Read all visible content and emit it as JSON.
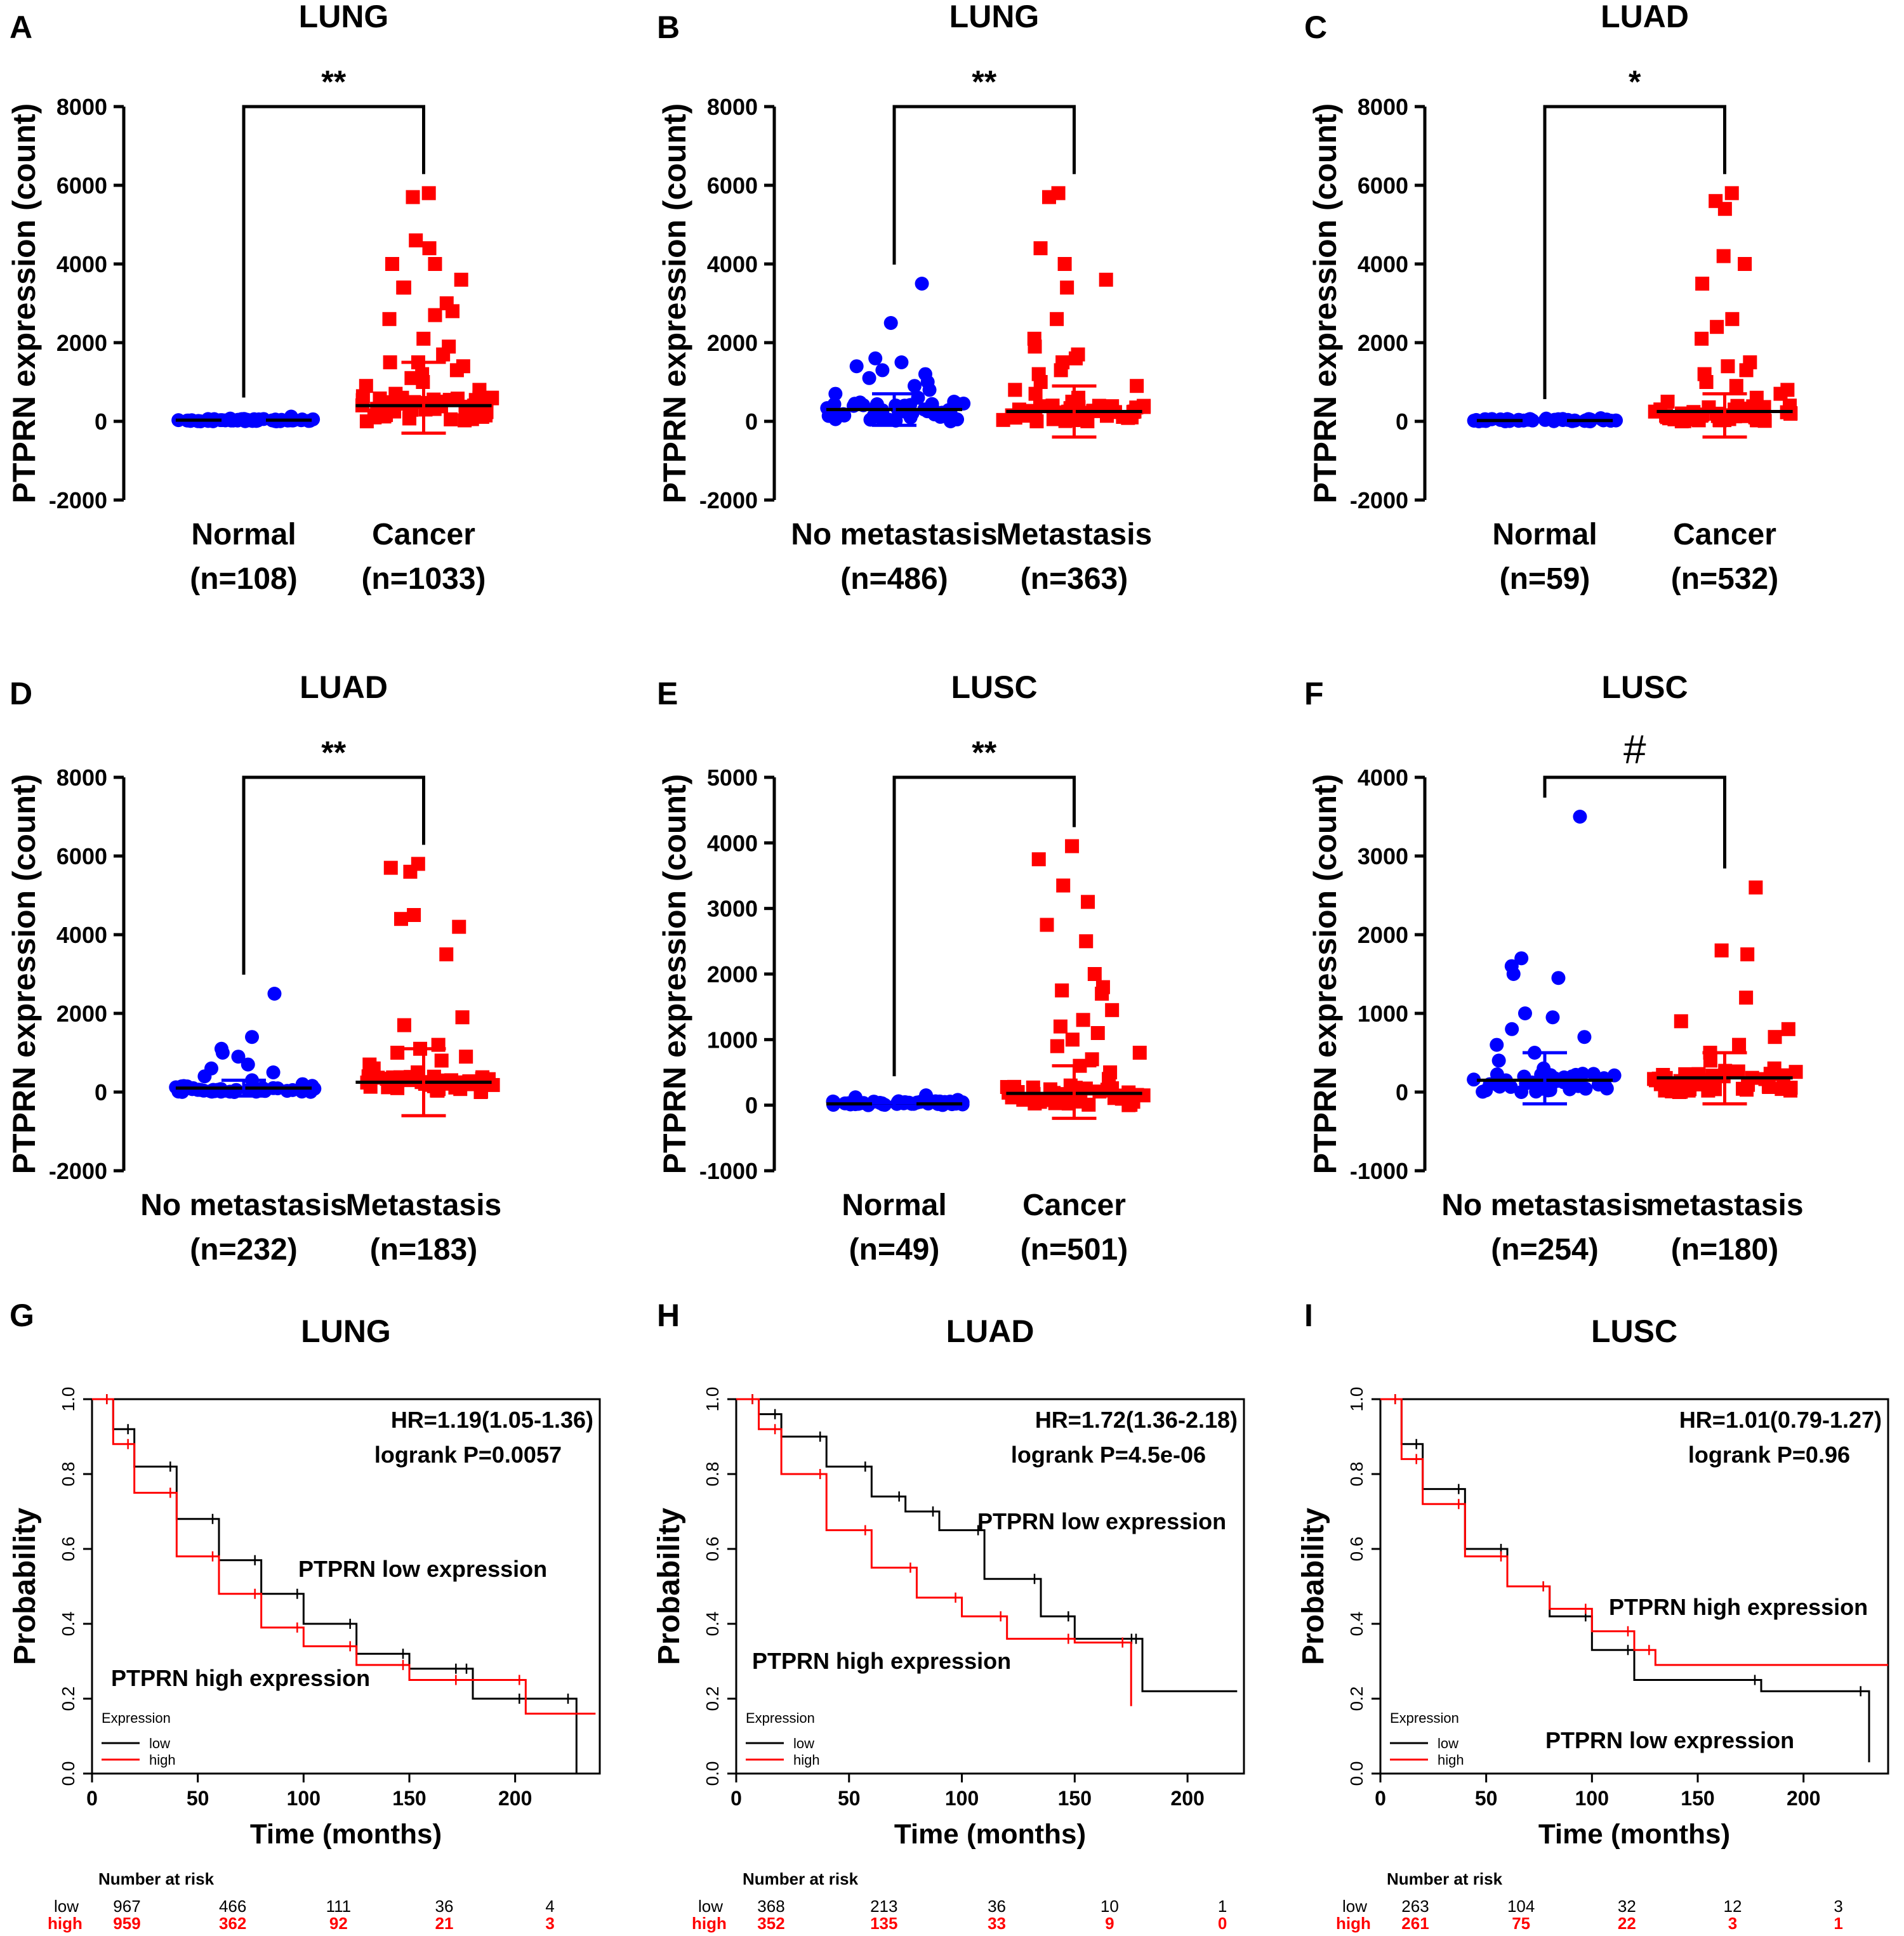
{
  "chart_data": [
    {
      "panel": "A",
      "type": "scatter",
      "title": "LUNG",
      "ylabel": "PTPRN expression (count)",
      "ylim": [
        -2000,
        8000
      ],
      "yticks": [
        "8000",
        "6000",
        "4000",
        "2000",
        "0",
        "-2000"
      ],
      "groups": [
        {
          "label": "Normal",
          "n": "(n=108)",
          "color": "#0000ff",
          "marker": "circle",
          "mean": 30,
          "sd_high": 40,
          "sd_low": -20,
          "points": [
            0,
            0,
            10,
            20,
            30,
            20,
            10,
            60,
            40,
            20,
            30,
            10,
            50,
            70,
            120,
            30,
            20,
            10,
            15,
            25
          ]
        },
        {
          "label": "Cancer",
          "n": "(n=1033)",
          "color": "#ff0000",
          "marker": "square",
          "mean": 400,
          "sd_high": 1500,
          "sd_low": -300,
          "points": [
            5800,
            5700,
            4600,
            4400,
            4000,
            4000,
            3600,
            3400,
            3400,
            3000,
            2800,
            2700,
            2600,
            2100,
            1900,
            1700,
            1500,
            1500,
            1400,
            1300,
            1200,
            1100,
            1000,
            900,
            800,
            700,
            600,
            500,
            400,
            300,
            250,
            200,
            150,
            100,
            50,
            0
          ]
        }
      ],
      "significance": "**"
    },
    {
      "panel": "B",
      "type": "scatter",
      "title": "LUNG",
      "ylabel": "PTPRN expression (count)",
      "ylim": [
        -2000,
        8000
      ],
      "yticks": [
        "8000",
        "6000",
        "4000",
        "2000",
        "0",
        "-2000"
      ],
      "groups": [
        {
          "label": "No metastasis",
          "n": "(n=486)",
          "color": "#0000ff",
          "marker": "circle",
          "mean": 300,
          "sd_high": 700,
          "sd_low": -100,
          "points": [
            3500,
            2500,
            1600,
            1500,
            1400,
            1300,
            1200,
            1100,
            1000,
            900,
            800,
            700,
            600,
            500,
            400,
            300,
            200,
            100,
            50,
            0
          ]
        },
        {
          "label": "Metastasis",
          "n": "(n=363)",
          "color": "#ff0000",
          "marker": "square",
          "mean": 250,
          "sd_high": 900,
          "sd_low": -400,
          "points": [
            5800,
            5700,
            4400,
            4000,
            3600,
            3400,
            2600,
            2100,
            1900,
            1700,
            1600,
            1500,
            1300,
            1200,
            1000,
            900,
            800,
            700,
            600,
            500,
            400,
            300,
            200,
            100,
            50,
            0
          ]
        }
      ],
      "significance": "**"
    },
    {
      "panel": "C",
      "type": "scatter",
      "title": "LUAD",
      "ylabel": "PTPRN expression (count)",
      "ylim": [
        -2000,
        8000
      ],
      "yticks": [
        "8000",
        "6000",
        "4000",
        "2000",
        "0",
        "-2000"
      ],
      "groups": [
        {
          "label": "Normal",
          "n": "(n=59)",
          "color": "#0000ff",
          "marker": "circle",
          "mean": 20,
          "sd_high": 40,
          "sd_low": -10,
          "points": [
            0,
            10,
            20,
            30,
            40,
            50,
            60,
            70,
            80,
            20
          ]
        },
        {
          "label": "Cancer",
          "n": "(n=532)",
          "color": "#ff0000",
          "marker": "square",
          "mean": 250,
          "sd_high": 700,
          "sd_low": -400,
          "points": [
            5800,
            5600,
            5400,
            4200,
            4000,
            3500,
            2600,
            2400,
            2100,
            1500,
            1400,
            1300,
            1200,
            1000,
            900,
            800,
            700,
            600,
            500,
            400,
            300,
            200,
            100,
            50,
            0
          ]
        }
      ],
      "significance": "*"
    },
    {
      "panel": "D",
      "type": "scatter",
      "title": "LUAD",
      "ylabel": "PTPRN expression (count)",
      "ylim": [
        -2000,
        8000
      ],
      "yticks": [
        "8000",
        "6000",
        "4000",
        "2000",
        "0",
        "-2000"
      ],
      "groups": [
        {
          "label": "No metastasis",
          "n": "(n=232)",
          "color": "#0000ff",
          "marker": "circle",
          "mean": 100,
          "sd_high": 300,
          "sd_low": -100,
          "points": [
            2500,
            1400,
            1100,
            1000,
            900,
            700,
            600,
            500,
            400,
            300,
            200,
            100,
            50,
            0
          ]
        },
        {
          "label": "Metastasis",
          "n": "(n=183)",
          "color": "#ff0000",
          "marker": "square",
          "mean": 250,
          "sd_high": 1100,
          "sd_low": -600,
          "points": [
            5800,
            5700,
            5600,
            4500,
            4400,
            4200,
            3500,
            1900,
            1700,
            1200,
            1100,
            1000,
            900,
            800,
            700,
            600,
            500,
            400,
            300,
            200,
            100,
            0
          ]
        }
      ],
      "significance": "**"
    },
    {
      "panel": "E",
      "type": "scatter",
      "title": "LUSC",
      "ylabel": "PTPRN expression (count)",
      "ylim": [
        -1000,
        5000
      ],
      "yticks": [
        "5000",
        "4000",
        "3000",
        "2000",
        "1000",
        "0",
        "-1000"
      ],
      "groups": [
        {
          "label": "Normal",
          "n": "(n=49)",
          "color": "#0000ff",
          "marker": "circle",
          "mean": 20,
          "sd_high": 40,
          "sd_low": -10,
          "points": [
            0,
            10,
            20,
            30,
            40,
            50,
            80,
            120,
            150,
            20
          ]
        },
        {
          "label": "Cancer",
          "n": "(n=501)",
          "color": "#ff0000",
          "marker": "square",
          "mean": 180,
          "sd_high": 600,
          "sd_low": -200,
          "points": [
            3950,
            3750,
            3350,
            3100,
            2750,
            2500,
            2000,
            1800,
            1750,
            1700,
            1450,
            1300,
            1200,
            1100,
            1000,
            900,
            800,
            700,
            600,
            500,
            400,
            300,
            200,
            100,
            0
          ]
        }
      ],
      "significance": "**"
    },
    {
      "panel": "F",
      "type": "scatter",
      "title": "LUSC",
      "ylabel": "PTPRN expression (count)",
      "ylim": [
        -1000,
        4000
      ],
      "yticks": [
        "4000",
        "3000",
        "2000",
        "1000",
        "0",
        "-1000"
      ],
      "groups": [
        {
          "label": "No metastasis",
          "n": "(n=254)",
          "color": "#0000ff",
          "marker": "circle",
          "mean": 150,
          "sd_high": 500,
          "sd_low": -150,
          "points": [
            3500,
            1700,
            1600,
            1500,
            1450,
            1000,
            950,
            800,
            700,
            600,
            500,
            400,
            300,
            200,
            100,
            0
          ]
        },
        {
          "label": "metastasis",
          "n": "(n=180)",
          "color": "#ff0000",
          "marker": "square",
          "mean": 180,
          "sd_high": 500,
          "sd_low": -150,
          "points": [
            2600,
            1800,
            1750,
            1200,
            900,
            800,
            700,
            600,
            500,
            400,
            300,
            200,
            100,
            0
          ]
        }
      ],
      "significance": "#"
    },
    {
      "panel": "G",
      "type": "line",
      "title": "LUNG",
      "xlabel": "Time (months)",
      "ylabel": "Probability",
      "xlim": [
        0,
        240
      ],
      "ylim": [
        0,
        1
      ],
      "xticks": [
        "0",
        "50",
        "100",
        "150",
        "200"
      ],
      "yticks": [
        "0.0",
        "0.2",
        "0.4",
        "0.6",
        "0.8",
        "1.0"
      ],
      "hr": "HR=1.19(1.05-1.36)",
      "logrank": "logrank P=0.0057",
      "low_label": "PTPRN low expression",
      "high_label": "PTPRN high expression",
      "legend_title": "Expression",
      "legend_low": "low",
      "legend_high": "high",
      "series": [
        {
          "name": "low",
          "color": "#000000",
          "x": [
            0,
            10,
            20,
            40,
            60,
            80,
            100,
            125,
            150,
            175,
            180,
            205,
            228,
            229
          ],
          "y": [
            1.0,
            0.92,
            0.82,
            0.68,
            0.57,
            0.48,
            0.4,
            0.32,
            0.28,
            0.28,
            0.2,
            0.2,
            0.2,
            0.0
          ]
        },
        {
          "name": "high",
          "color": "#ff0000",
          "x": [
            0,
            10,
            20,
            40,
            60,
            80,
            100,
            125,
            150,
            175,
            205,
            238
          ],
          "y": [
            1.0,
            0.88,
            0.75,
            0.58,
            0.48,
            0.39,
            0.34,
            0.29,
            0.25,
            0.25,
            0.16,
            0.16
          ]
        }
      ],
      "risk_header": "Number at risk",
      "risk_low_label": "low",
      "risk_high_label": "high",
      "risk_low": [
        "967",
        "466",
        "111",
        "36",
        "4"
      ],
      "risk_high": [
        "959",
        "362",
        "92",
        "21",
        "3"
      ]
    },
    {
      "panel": "H",
      "type": "line",
      "title": "LUAD",
      "xlabel": "Time (months)",
      "ylabel": "Probability",
      "xlim": [
        0,
        225
      ],
      "ylim": [
        0,
        1
      ],
      "xticks": [
        "0",
        "50",
        "100",
        "150",
        "200"
      ],
      "yticks": [
        "0.0",
        "0.2",
        "0.4",
        "0.6",
        "0.8",
        "1.0"
      ],
      "hr": "HR=1.72(1.36-2.18)",
      "logrank": "logrank P=4.5e-06",
      "low_label": "PTPRN low expression",
      "high_label": "PTPRN high expression",
      "legend_title": "Expression",
      "legend_low": "low",
      "legend_high": "high",
      "series": [
        {
          "name": "low",
          "color": "#000000",
          "x": [
            0,
            10,
            20,
            40,
            60,
            75,
            90,
            110,
            135,
            150,
            178,
            180,
            222
          ],
          "y": [
            1.0,
            0.96,
            0.9,
            0.82,
            0.74,
            0.7,
            0.65,
            0.52,
            0.42,
            0.36,
            0.36,
            0.22,
            0.22
          ]
        },
        {
          "name": "high",
          "color": "#ff0000",
          "x": [
            0,
            10,
            20,
            40,
            60,
            80,
            100,
            120,
            150,
            174,
            175
          ],
          "y": [
            1.0,
            0.92,
            0.8,
            0.65,
            0.55,
            0.47,
            0.42,
            0.36,
            0.35,
            0.35,
            0.18
          ]
        }
      ],
      "risk_header": "Number at risk",
      "risk_low_label": "low",
      "risk_high_label": "high",
      "risk_low": [
        "368",
        "213",
        "36",
        "10",
        "1"
      ],
      "risk_high": [
        "352",
        "135",
        "33",
        "9",
        "0"
      ]
    },
    {
      "panel": "I",
      "type": "line",
      "title": "LUSC",
      "xlabel": "Time (months)",
      "ylabel": "Probability",
      "xlim": [
        0,
        240
      ],
      "ylim": [
        0,
        1
      ],
      "xticks": [
        "0",
        "50",
        "100",
        "150",
        "200"
      ],
      "yticks": [
        "0.0",
        "0.2",
        "0.4",
        "0.6",
        "0.8",
        "1.0"
      ],
      "hr": "HR=1.01(0.79-1.27)",
      "logrank": "logrank P=0.96",
      "low_label": "PTPRN low expression",
      "high_label": "PTPRN high expression",
      "legend_title": "Expression",
      "legend_low": "low",
      "legend_high": "high",
      "series": [
        {
          "name": "low",
          "color": "#000000",
          "x": [
            0,
            10,
            20,
            40,
            60,
            80,
            100,
            120,
            180,
            230,
            231
          ],
          "y": [
            1.0,
            0.88,
            0.76,
            0.6,
            0.5,
            0.42,
            0.33,
            0.25,
            0.22,
            0.22,
            0.03
          ]
        },
        {
          "name": "high",
          "color": "#ff0000",
          "x": [
            0,
            10,
            20,
            40,
            60,
            80,
            100,
            120,
            130,
            240
          ],
          "y": [
            1.0,
            0.84,
            0.72,
            0.58,
            0.5,
            0.44,
            0.38,
            0.33,
            0.29,
            0.29
          ]
        }
      ],
      "risk_header": "Number at risk",
      "risk_low_label": "low",
      "risk_high_label": "high",
      "risk_low": [
        "263",
        "104",
        "32",
        "12",
        "3"
      ],
      "risk_high": [
        "261",
        "75",
        "22",
        "3",
        "1"
      ]
    }
  ]
}
